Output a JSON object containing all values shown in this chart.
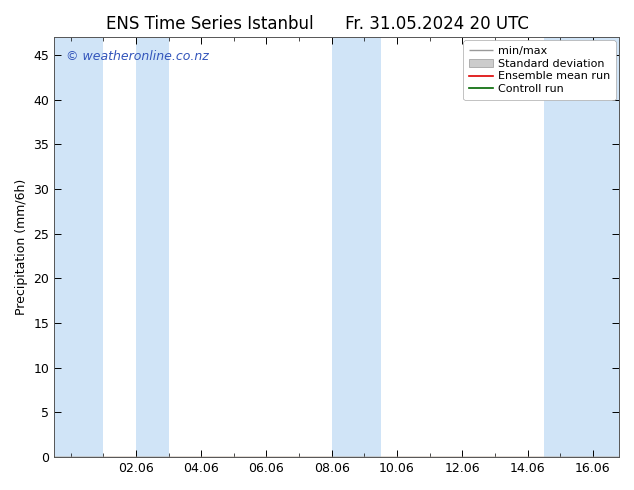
{
  "title_left": "ENS Time Series Istanbul",
  "title_right": "Fr. 31.05.2024 20 UTC",
  "ylabel": "Precipitation (mm/6h)",
  "watermark": "© weatheronline.co.nz",
  "watermark_color": "#3355bb",
  "ylim": [
    0,
    47
  ],
  "yticks": [
    0,
    5,
    10,
    15,
    20,
    25,
    30,
    35,
    40,
    45
  ],
  "bg_color": "#ffffff",
  "plot_bg_color": "#ffffff",
  "band_color": "#d0e4f7",
  "bands": [
    [
      -0.5,
      1.0
    ],
    [
      2.0,
      3.0
    ],
    [
      8.0,
      9.5
    ],
    [
      14.5,
      16.8
    ]
  ],
  "xtick_labels": [
    "02.06",
    "04.06",
    "06.06",
    "08.06",
    "10.06",
    "12.06",
    "14.06",
    "16.06"
  ],
  "xtick_positions": [
    2,
    4,
    6,
    8,
    10,
    12,
    14,
    16
  ],
  "xmin": -0.5,
  "xmax": 16.8,
  "legend_items": [
    {
      "label": "min/max",
      "color": "#aaaaaa",
      "type": "hline_caps"
    },
    {
      "label": "Standard deviation",
      "color": "#cccccc",
      "type": "fillbetween"
    },
    {
      "label": "Ensemble mean run",
      "color": "#dd0000",
      "type": "line"
    },
    {
      "label": "Controll run",
      "color": "#006600",
      "type": "line"
    }
  ],
  "title_fontsize": 12,
  "tick_fontsize": 9,
  "label_fontsize": 9,
  "watermark_fontsize": 9,
  "legend_fontsize": 8
}
